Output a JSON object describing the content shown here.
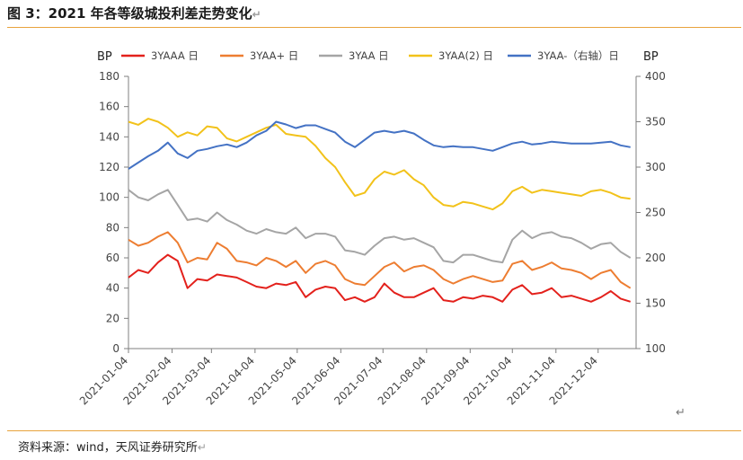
{
  "figure_title": "图 3：2021 年各等级城投利差走势变化",
  "source_note": "资料来源：wind，天风证券研究所",
  "paragraph_mark": "↵",
  "chart_data": {
    "type": "line",
    "title": "",
    "y_unit_left": "BP",
    "y_unit_right": "BP",
    "ylim_left": [
      0,
      180
    ],
    "yticks_left": [
      0,
      20,
      40,
      60,
      80,
      100,
      120,
      140,
      160,
      180
    ],
    "ylim_right": [
      100,
      400
    ],
    "yticks_right": [
      100,
      150,
      200,
      250,
      300,
      350,
      400
    ],
    "x_ticks": [
      "2021-01-04",
      "2021-02-04",
      "2021-03-04",
      "2021-04-04",
      "2021-05-04",
      "2021-06-04",
      "2021-07-04",
      "2021-08-04",
      "2021-09-04",
      "2021-10-04",
      "2021-11-04",
      "2021-12-04"
    ],
    "legend_position": "top",
    "grid": false,
    "series": [
      {
        "name": "3YAAA 日",
        "color": "#E3211C",
        "axis": "left",
        "x": [
          "2021-01-04",
          "2021-01-11",
          "2021-01-18",
          "2021-01-25",
          "2021-02-01",
          "2021-02-08",
          "2021-02-15",
          "2021-02-22",
          "2021-03-01",
          "2021-03-08",
          "2021-03-15",
          "2021-03-22",
          "2021-03-29",
          "2021-04-05",
          "2021-04-12",
          "2021-04-19",
          "2021-04-26",
          "2021-05-03",
          "2021-05-10",
          "2021-05-17",
          "2021-05-24",
          "2021-05-31",
          "2021-06-07",
          "2021-06-14",
          "2021-06-21",
          "2021-06-28",
          "2021-07-05",
          "2021-07-12",
          "2021-07-19",
          "2021-07-26",
          "2021-08-02",
          "2021-08-09",
          "2021-08-16",
          "2021-08-23",
          "2021-08-30",
          "2021-09-06",
          "2021-09-13",
          "2021-09-20",
          "2021-09-27",
          "2021-10-04",
          "2021-10-11",
          "2021-10-18",
          "2021-10-25",
          "2021-11-01",
          "2021-11-08",
          "2021-11-15",
          "2021-11-22",
          "2021-11-29",
          "2021-12-06",
          "2021-12-13",
          "2021-12-20",
          "2021-12-27"
        ],
        "values": [
          47,
          52,
          50,
          57,
          62,
          58,
          40,
          46,
          45,
          49,
          48,
          47,
          44,
          41,
          40,
          43,
          42,
          44,
          34,
          39,
          41,
          40,
          32,
          34,
          31,
          34,
          43,
          37,
          34,
          34,
          37,
          40,
          32,
          31,
          34,
          33,
          35,
          34,
          31,
          39,
          42,
          36,
          37,
          40,
          34,
          35,
          33,
          31,
          34,
          38,
          33,
          31
        ]
      },
      {
        "name": "3YAA+ 日",
        "color": "#ED7D31",
        "axis": "left",
        "x": [
          "2021-01-04",
          "2021-01-11",
          "2021-01-18",
          "2021-01-25",
          "2021-02-01",
          "2021-02-08",
          "2021-02-15",
          "2021-02-22",
          "2021-03-01",
          "2021-03-08",
          "2021-03-15",
          "2021-03-22",
          "2021-03-29",
          "2021-04-05",
          "2021-04-12",
          "2021-04-19",
          "2021-04-26",
          "2021-05-03",
          "2021-05-10",
          "2021-05-17",
          "2021-05-24",
          "2021-05-31",
          "2021-06-07",
          "2021-06-14",
          "2021-06-21",
          "2021-06-28",
          "2021-07-05",
          "2021-07-12",
          "2021-07-19",
          "2021-07-26",
          "2021-08-02",
          "2021-08-09",
          "2021-08-16",
          "2021-08-23",
          "2021-08-30",
          "2021-09-06",
          "2021-09-13",
          "2021-09-20",
          "2021-09-27",
          "2021-10-04",
          "2021-10-11",
          "2021-10-18",
          "2021-10-25",
          "2021-11-01",
          "2021-11-08",
          "2021-11-15",
          "2021-11-22",
          "2021-11-29",
          "2021-12-06",
          "2021-12-13",
          "2021-12-20",
          "2021-12-27"
        ],
        "values": [
          72,
          68,
          70,
          74,
          77,
          70,
          57,
          60,
          59,
          70,
          66,
          58,
          57,
          55,
          60,
          58,
          54,
          58,
          50,
          56,
          58,
          55,
          46,
          43,
          42,
          48,
          54,
          57,
          51,
          54,
          55,
          52,
          46,
          43,
          46,
          48,
          46,
          44,
          45,
          56,
          58,
          52,
          54,
          57,
          53,
          52,
          50,
          46,
          50,
          52,
          44,
          40
        ]
      },
      {
        "name": "3YAA 日",
        "color": "#A5A5A5",
        "axis": "left",
        "x": [
          "2021-01-04",
          "2021-01-11",
          "2021-01-18",
          "2021-01-25",
          "2021-02-01",
          "2021-02-08",
          "2021-02-15",
          "2021-02-22",
          "2021-03-01",
          "2021-03-08",
          "2021-03-15",
          "2021-03-22",
          "2021-03-29",
          "2021-04-05",
          "2021-04-12",
          "2021-04-19",
          "2021-04-26",
          "2021-05-03",
          "2021-05-10",
          "2021-05-17",
          "2021-05-24",
          "2021-05-31",
          "2021-06-07",
          "2021-06-14",
          "2021-06-21",
          "2021-06-28",
          "2021-07-05",
          "2021-07-12",
          "2021-07-19",
          "2021-07-26",
          "2021-08-02",
          "2021-08-09",
          "2021-08-16",
          "2021-08-23",
          "2021-08-30",
          "2021-09-06",
          "2021-09-13",
          "2021-09-20",
          "2021-09-27",
          "2021-10-04",
          "2021-10-11",
          "2021-10-18",
          "2021-10-25",
          "2021-11-01",
          "2021-11-08",
          "2021-11-15",
          "2021-11-22",
          "2021-11-29",
          "2021-12-06",
          "2021-12-13",
          "2021-12-20",
          "2021-12-27"
        ],
        "values": [
          105,
          100,
          98,
          102,
          105,
          95,
          85,
          86,
          84,
          90,
          85,
          82,
          78,
          76,
          79,
          77,
          76,
          80,
          73,
          76,
          76,
          74,
          65,
          64,
          62,
          68,
          73,
          74,
          72,
          73,
          70,
          67,
          58,
          57,
          62,
          62,
          60,
          58,
          57,
          72,
          78,
          73,
          76,
          77,
          74,
          73,
          70,
          66,
          69,
          70,
          64,
          60
        ]
      },
      {
        "name": "3YAA(2) 日",
        "color": "#F2C21A",
        "axis": "left",
        "x": [
          "2021-01-04",
          "2021-01-11",
          "2021-01-18",
          "2021-01-25",
          "2021-02-01",
          "2021-02-08",
          "2021-02-15",
          "2021-02-22",
          "2021-03-01",
          "2021-03-08",
          "2021-03-15",
          "2021-03-22",
          "2021-03-29",
          "2021-04-05",
          "2021-04-12",
          "2021-04-19",
          "2021-04-26",
          "2021-05-03",
          "2021-05-10",
          "2021-05-17",
          "2021-05-24",
          "2021-05-31",
          "2021-06-07",
          "2021-06-14",
          "2021-06-21",
          "2021-06-28",
          "2021-07-05",
          "2021-07-12",
          "2021-07-19",
          "2021-07-26",
          "2021-08-02",
          "2021-08-09",
          "2021-08-16",
          "2021-08-23",
          "2021-08-30",
          "2021-09-06",
          "2021-09-13",
          "2021-09-20",
          "2021-09-27",
          "2021-10-04",
          "2021-10-11",
          "2021-10-18",
          "2021-10-25",
          "2021-11-01",
          "2021-11-08",
          "2021-11-15",
          "2021-11-22",
          "2021-11-29",
          "2021-12-06",
          "2021-12-13",
          "2021-12-20",
          "2021-12-27"
        ],
        "values": [
          150,
          148,
          152,
          150,
          146,
          140,
          143,
          141,
          147,
          146,
          139,
          137,
          140,
          143,
          146,
          148,
          142,
          141,
          140,
          134,
          126,
          120,
          110,
          101,
          103,
          112,
          117,
          115,
          118,
          112,
          108,
          100,
          95,
          94,
          97,
          96,
          94,
          92,
          96,
          104,
          107,
          103,
          105,
          104,
          103,
          102,
          101,
          104,
          105,
          103,
          100,
          99
        ]
      },
      {
        "name": "3YAA-（右轴）日",
        "color": "#4472C4",
        "axis": "right",
        "x": [
          "2021-01-04",
          "2021-01-11",
          "2021-01-18",
          "2021-01-25",
          "2021-02-01",
          "2021-02-08",
          "2021-02-15",
          "2021-02-22",
          "2021-03-01",
          "2021-03-08",
          "2021-03-15",
          "2021-03-22",
          "2021-03-29",
          "2021-04-05",
          "2021-04-12",
          "2021-04-19",
          "2021-04-26",
          "2021-05-03",
          "2021-05-10",
          "2021-05-17",
          "2021-05-24",
          "2021-05-31",
          "2021-06-07",
          "2021-06-14",
          "2021-06-21",
          "2021-06-28",
          "2021-07-05",
          "2021-07-12",
          "2021-07-19",
          "2021-07-26",
          "2021-08-02",
          "2021-08-09",
          "2021-08-16",
          "2021-08-23",
          "2021-08-30",
          "2021-09-06",
          "2021-09-13",
          "2021-09-20",
          "2021-09-27",
          "2021-10-04",
          "2021-10-11",
          "2021-10-18",
          "2021-10-25",
          "2021-11-01",
          "2021-11-08",
          "2021-11-15",
          "2021-11-22",
          "2021-11-29",
          "2021-12-06",
          "2021-12-13",
          "2021-12-20",
          "2021-12-27"
        ],
        "values": [
          298,
          305,
          312,
          318,
          327,
          315,
          310,
          318,
          320,
          323,
          325,
          322,
          327,
          335,
          340,
          350,
          347,
          343,
          346,
          346,
          342,
          338,
          328,
          322,
          330,
          338,
          340,
          338,
          340,
          337,
          330,
          324,
          322,
          323,
          322,
          322,
          320,
          318,
          322,
          326,
          328,
          325,
          326,
          328,
          327,
          326,
          326,
          326,
          327,
          328,
          324,
          322
        ]
      }
    ]
  }
}
